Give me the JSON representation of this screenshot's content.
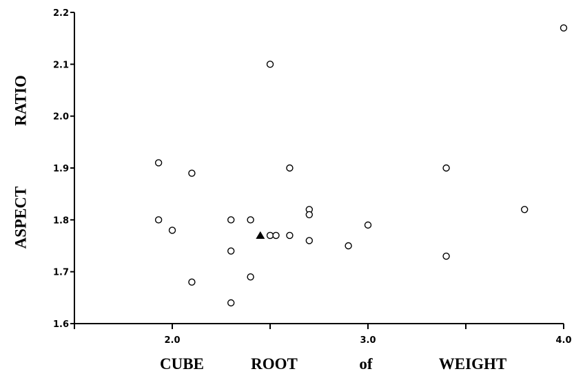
{
  "chart_data": {
    "type": "scatter",
    "title": "",
    "xlabel": "CUBE ROOT of WEIGHT",
    "xlabel_words": [
      "CUBE",
      "ROOT",
      "of",
      "WEIGHT"
    ],
    "ylabel": "ASPECT RATIO",
    "ylabel_words": [
      "ASPECT",
      "RATIO"
    ],
    "xlim": [
      1.5,
      4.0
    ],
    "ylim": [
      1.6,
      2.2
    ],
    "x_ticks": [
      1.5,
      2.0,
      2.5,
      3.0,
      3.5,
      4.0
    ],
    "x_tick_labels": [
      "",
      "2.0",
      "",
      "3.0",
      "",
      "4.0"
    ],
    "y_ticks": [
      1.6,
      1.7,
      1.8,
      1.9,
      2.0,
      2.1,
      2.2
    ],
    "y_tick_labels": [
      "1.6",
      "1.7",
      "1.8",
      "1.9",
      "2.0",
      "2.1",
      "2.2"
    ],
    "grid": false,
    "series": [
      {
        "marker": "open-circle",
        "points": [
          {
            "x": 1.93,
            "y": 1.91
          },
          {
            "x": 1.93,
            "y": 1.8
          },
          {
            "x": 2.0,
            "y": 1.78
          },
          {
            "x": 2.1,
            "y": 1.89
          },
          {
            "x": 2.1,
            "y": 1.68
          },
          {
            "x": 2.3,
            "y": 1.8
          },
          {
            "x": 2.3,
            "y": 1.74
          },
          {
            "x": 2.3,
            "y": 1.64
          },
          {
            "x": 2.4,
            "y": 1.8
          },
          {
            "x": 2.4,
            "y": 1.69
          },
          {
            "x": 2.5,
            "y": 2.1
          },
          {
            "x": 2.5,
            "y": 1.77
          },
          {
            "x": 2.53,
            "y": 1.77
          },
          {
            "x": 2.6,
            "y": 1.9
          },
          {
            "x": 2.6,
            "y": 1.77
          },
          {
            "x": 2.7,
            "y": 1.82
          },
          {
            "x": 2.7,
            "y": 1.81
          },
          {
            "x": 2.7,
            "y": 1.76
          },
          {
            "x": 2.9,
            "y": 1.75
          },
          {
            "x": 3.0,
            "y": 1.79
          },
          {
            "x": 3.4,
            "y": 1.9
          },
          {
            "x": 3.4,
            "y": 1.73
          },
          {
            "x": 3.8,
            "y": 1.82
          },
          {
            "x": 4.0,
            "y": 2.17
          }
        ]
      },
      {
        "marker": "filled-triangle",
        "points": [
          {
            "x": 2.45,
            "y": 1.77
          }
        ]
      }
    ]
  }
}
